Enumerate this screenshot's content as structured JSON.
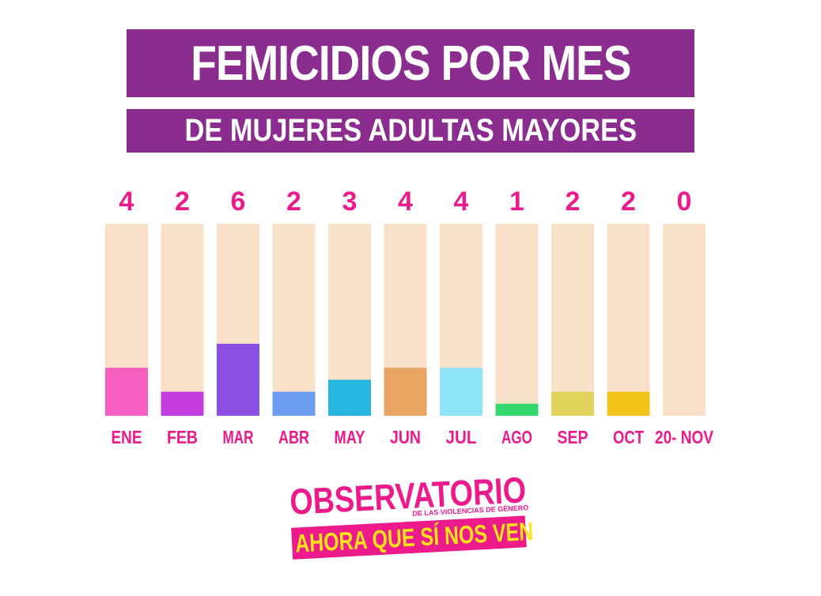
{
  "header": {
    "title": "FEMICIDIOS POR MES",
    "subtitle": "DE MUJERES ADULTAS MAYORES"
  },
  "colors": {
    "title_bg": "#8b2d8f",
    "value_text": "#ec1a8a",
    "bar_track": "#f9e0c9"
  },
  "chart_data": {
    "type": "bar",
    "categories": [
      "ENE",
      "FEB",
      "MAR",
      "ABR",
      "MAY",
      "JUN",
      "JUL",
      "AGO",
      "SEP",
      "OCT",
      "20- NOV"
    ],
    "values": [
      4,
      2,
      6,
      2,
      3,
      4,
      4,
      1,
      2,
      2,
      0
    ],
    "colors": [
      "#f760c0",
      "#c23ce0",
      "#8c4fe3",
      "#6c9ef0",
      "#27b6e0",
      "#e8a462",
      "#8fe4f7",
      "#34d96e",
      "#e2d35c",
      "#f2c417",
      "#f9e0c9"
    ],
    "ylim": [
      0,
      16
    ]
  },
  "logo": {
    "line1": "OBSERVATORIO",
    "line2": "DE LAS VIOLENCIAS DE GÉNERO",
    "line3": "AHORA QUE SÍ NOS VEN"
  }
}
